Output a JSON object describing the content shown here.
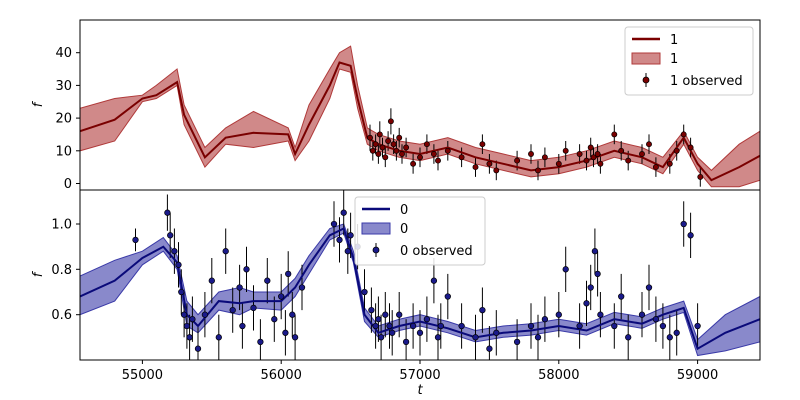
{
  "colors": {
    "top_line": "#7a0000",
    "top_band": "#b03a3a",
    "bottom_line": "#0a0a7a",
    "bottom_band": "#3a3aa8",
    "marker_top": "#7a0000",
    "marker_bottom": "#1a1a8a"
  },
  "chart_data": [
    {
      "type": "line",
      "panel": "top",
      "ylabel": "f",
      "xlabel": "",
      "xlim": [
        54550,
        59450
      ],
      "ylim": [
        -2,
        50
      ],
      "yticks": [
        0,
        10,
        20,
        30,
        40
      ],
      "grid": false,
      "legend": {
        "position": "top-right",
        "entries": [
          {
            "kind": "line",
            "label": "1"
          },
          {
            "kind": "band",
            "label": "1"
          },
          {
            "kind": "marker",
            "label": "1 observed"
          }
        ]
      },
      "model": {
        "x": [
          54550,
          54800,
          55000,
          55100,
          55250,
          55300,
          55450,
          55600,
          55800,
          56050,
          56100,
          56200,
          56350,
          56420,
          56500,
          56550,
          56620,
          56700,
          56850,
          57000,
          57200,
          57400,
          57600,
          57800,
          58000,
          58200,
          58400,
          58600,
          58750,
          58900,
          59000,
          59100,
          59300,
          59450
        ],
        "y": [
          16,
          19.5,
          26,
          27,
          31,
          21,
          8,
          14,
          15.5,
          15,
          9,
          18,
          30,
          37,
          36,
          26,
          14,
          12,
          10,
          9,
          11,
          8,
          6,
          4,
          5,
          7,
          10,
          8,
          5,
          14,
          6,
          1,
          5,
          8.5
        ],
        "lower": [
          10,
          13,
          25,
          26,
          30,
          18,
          5,
          12,
          11,
          13,
          7,
          13,
          26,
          35,
          34,
          23,
          12,
          10,
          8,
          7,
          9,
          6,
          4,
          2,
          3,
          5,
          8,
          6,
          3,
          12,
          4,
          -1,
          -1,
          1
        ],
        "upper": [
          23,
          26,
          27,
          30,
          35,
          24,
          11,
          17,
          22,
          17,
          11,
          24,
          35,
          40,
          42,
          30,
          17,
          15,
          13,
          12,
          14,
          11,
          9,
          7,
          8,
          10,
          13,
          11,
          8,
          16,
          8,
          4,
          12,
          16
        ]
      },
      "observed": {
        "x": [
          56640,
          56660,
          56680,
          56700,
          56710,
          56730,
          56750,
          56770,
          56790,
          56810,
          56830,
          56850,
          56870,
          56900,
          56950,
          57000,
          57050,
          57100,
          57130,
          57200,
          57300,
          57400,
          57450,
          57500,
          57550,
          57700,
          57800,
          57850,
          57900,
          58000,
          58050,
          58150,
          58200,
          58230,
          58250,
          58280,
          58300,
          58400,
          58450,
          58500,
          58600,
          58650,
          58700,
          58800,
          58850,
          58900,
          58950,
          59020
        ],
        "y": [
          14,
          10,
          12,
          9,
          15,
          11,
          8,
          13,
          19,
          12,
          10,
          14,
          9,
          11,
          6,
          8,
          12,
          9,
          7,
          10,
          8,
          5,
          12,
          6,
          4,
          7,
          9,
          4,
          8,
          6,
          10,
          9,
          7,
          11,
          8,
          9,
          6,
          15,
          10,
          7,
          9,
          12,
          5,
          6,
          10,
          15,
          11,
          2
        ],
        "err": [
          4,
          3,
          3,
          3,
          4,
          3,
          3,
          3,
          4,
          3,
          3,
          3,
          3,
          3,
          3,
          3,
          3,
          3,
          3,
          3,
          3,
          3,
          3,
          3,
          3,
          3,
          3,
          3,
          3,
          3,
          3,
          3,
          3,
          3,
          3,
          3,
          3,
          3,
          3,
          3,
          3,
          3,
          3,
          3,
          3,
          3,
          3,
          3
        ]
      }
    },
    {
      "type": "line",
      "panel": "bottom",
      "ylabel": "f",
      "xlabel": "t",
      "xlim": [
        54550,
        59450
      ],
      "ylim": [
        0.4,
        1.15
      ],
      "yticks": [
        0.6,
        0.8,
        1.0
      ],
      "xticks": [
        55000,
        56000,
        57000,
        58000,
        59000
      ],
      "grid": false,
      "legend": {
        "position": "top-center",
        "entries": [
          {
            "kind": "line",
            "label": "0"
          },
          {
            "kind": "band",
            "label": "0"
          },
          {
            "kind": "marker",
            "label": "0 observed"
          }
        ]
      },
      "model": {
        "x": [
          54550,
          54800,
          55000,
          55150,
          55250,
          55320,
          55400,
          55550,
          55700,
          55800,
          56000,
          56100,
          56200,
          56350,
          56450,
          56520,
          56600,
          56700,
          56850,
          57000,
          57200,
          57400,
          57600,
          57800,
          58000,
          58200,
          58400,
          58600,
          58750,
          58900,
          59000,
          59200,
          59450
        ],
        "y": [
          0.68,
          0.75,
          0.85,
          0.9,
          0.83,
          0.6,
          0.55,
          0.66,
          0.65,
          0.66,
          0.66,
          0.72,
          0.82,
          0.95,
          0.98,
          0.85,
          0.6,
          0.52,
          0.55,
          0.57,
          0.54,
          0.5,
          0.52,
          0.53,
          0.55,
          0.53,
          0.58,
          0.56,
          0.6,
          0.63,
          0.45,
          0.52,
          0.58
        ],
        "lower": [
          0.6,
          0.66,
          0.82,
          0.88,
          0.8,
          0.55,
          0.52,
          0.62,
          0.6,
          0.63,
          0.62,
          0.68,
          0.78,
          0.93,
          0.96,
          0.83,
          0.57,
          0.5,
          0.53,
          0.55,
          0.52,
          0.48,
          0.5,
          0.51,
          0.53,
          0.51,
          0.56,
          0.54,
          0.58,
          0.61,
          0.42,
          0.44,
          0.48
        ],
        "upper": [
          0.77,
          0.84,
          0.88,
          0.94,
          0.86,
          0.66,
          0.6,
          0.7,
          0.72,
          0.7,
          0.7,
          0.76,
          0.86,
          0.98,
          1.0,
          0.88,
          0.63,
          0.55,
          0.58,
          0.6,
          0.57,
          0.53,
          0.55,
          0.56,
          0.58,
          0.56,
          0.61,
          0.59,
          0.63,
          0.66,
          0.49,
          0.6,
          0.68
        ]
      },
      "observed": {
        "x": [
          54950,
          55180,
          55200,
          55230,
          55260,
          55280,
          55300,
          55320,
          55340,
          55360,
          55400,
          55450,
          55500,
          55550,
          55600,
          55650,
          55700,
          55720,
          55750,
          55800,
          55850,
          55900,
          55950,
          56000,
          56030,
          56050,
          56080,
          56100,
          56150,
          56380,
          56420,
          56450,
          56480,
          56500,
          56550,
          56600,
          56650,
          56680,
          56700,
          56720,
          56750,
          56780,
          56800,
          56850,
          56900,
          56950,
          57000,
          57050,
          57100,
          57130,
          57150,
          57200,
          57300,
          57400,
          57450,
          57500,
          57550,
          57700,
          57800,
          57850,
          57900,
          58000,
          58050,
          58150,
          58200,
          58230,
          58260,
          58280,
          58300,
          58400,
          58450,
          58500,
          58600,
          58650,
          58700,
          58750,
          58800,
          58850,
          58900,
          58950,
          59000
        ],
        "y": [
          0.93,
          1.05,
          0.95,
          0.88,
          0.82,
          0.7,
          0.6,
          0.55,
          0.5,
          0.58,
          0.45,
          0.6,
          0.75,
          0.5,
          0.88,
          0.62,
          0.72,
          0.55,
          0.8,
          0.63,
          0.48,
          0.75,
          0.58,
          0.68,
          0.52,
          0.78,
          0.6,
          0.5,
          0.72,
          1.0,
          0.93,
          1.05,
          0.88,
          0.95,
          0.9,
          0.7,
          0.62,
          0.55,
          0.58,
          0.5,
          0.6,
          0.55,
          0.52,
          0.6,
          0.48,
          0.55,
          0.52,
          0.58,
          0.75,
          0.5,
          0.55,
          0.68,
          0.55,
          0.5,
          0.62,
          0.45,
          0.52,
          0.48,
          0.55,
          0.5,
          0.58,
          0.6,
          0.8,
          0.55,
          0.65,
          0.72,
          0.88,
          0.78,
          0.6,
          0.55,
          0.68,
          0.5,
          0.6,
          0.72,
          0.58,
          0.55,
          0.5,
          0.52,
          1.0,
          0.95,
          0.55
        ],
        "err": [
          0.05,
          0.08,
          0.1,
          0.1,
          0.1,
          0.1,
          0.1,
          0.1,
          0.1,
          0.1,
          0.1,
          0.1,
          0.1,
          0.1,
          0.1,
          0.1,
          0.1,
          0.1,
          0.1,
          0.1,
          0.1,
          0.1,
          0.1,
          0.1,
          0.1,
          0.1,
          0.1,
          0.1,
          0.1,
          0.1,
          0.1,
          0.1,
          0.1,
          0.1,
          0.1,
          0.1,
          0.1,
          0.1,
          0.1,
          0.1,
          0.1,
          0.1,
          0.1,
          0.1,
          0.1,
          0.1,
          0.1,
          0.1,
          0.1,
          0.1,
          0.1,
          0.1,
          0.1,
          0.1,
          0.1,
          0.1,
          0.1,
          0.1,
          0.1,
          0.1,
          0.1,
          0.1,
          0.1,
          0.1,
          0.1,
          0.1,
          0.1,
          0.1,
          0.1,
          0.1,
          0.1,
          0.1,
          0.1,
          0.1,
          0.1,
          0.1,
          0.1,
          0.1,
          0.1,
          0.1,
          0.1
        ]
      }
    }
  ]
}
